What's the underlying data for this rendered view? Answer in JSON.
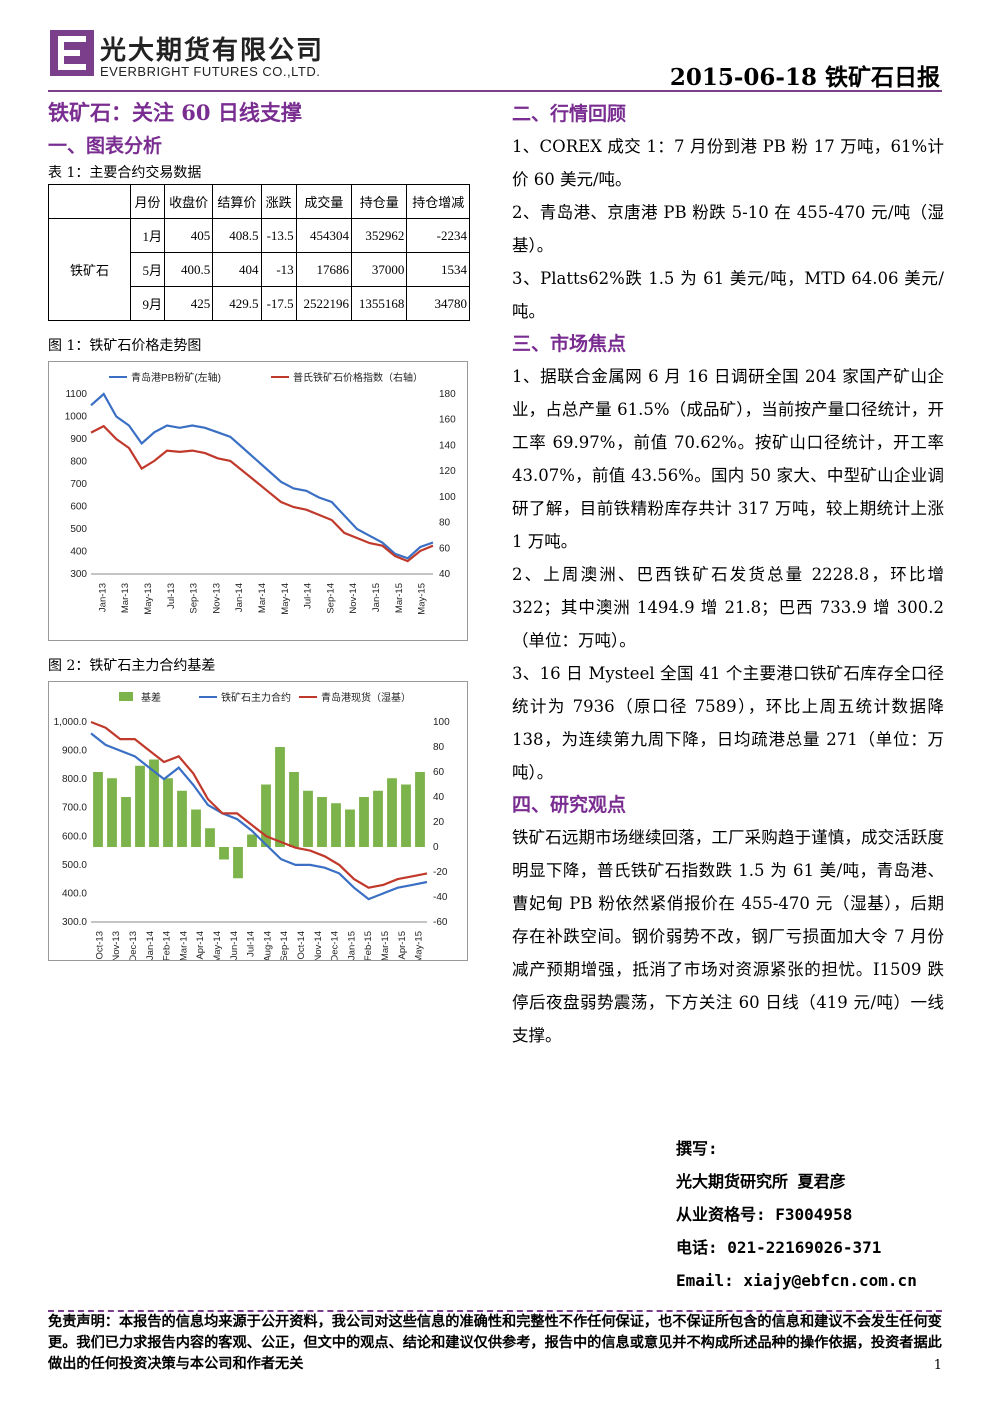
{
  "header": {
    "company_cn": "光大期货有限公司",
    "company_en": "EVERBRIGHT FUTURES CO.,LTD.",
    "report_title": "2015-06-18 铁矿石日报",
    "logo_letter": "E",
    "brand_color": "#7a3e8a"
  },
  "left": {
    "main_title": "铁矿石：关注 60 日线支撑",
    "section1": "一、图表分析",
    "table_caption": "表 1：主要合约交易数据",
    "table": {
      "headers": [
        "月份",
        "收盘价",
        "结算价",
        "涨跌",
        "成交量",
        "持仓量",
        "持仓增减"
      ],
      "variety": "铁矿石",
      "rows": [
        [
          "1月",
          "405",
          "408.5",
          "-13.5",
          "454304",
          "352962",
          "-2234"
        ],
        [
          "5月",
          "400.5",
          "404",
          "-13",
          "17686",
          "37000",
          "1534"
        ],
        [
          "9月",
          "425",
          "429.5",
          "-17.5",
          "2522196",
          "1355168",
          "34780"
        ]
      ]
    },
    "fig1_caption": "图 1：铁矿石价格走势图",
    "fig2_caption": "图 2：铁矿石主力合约基差"
  },
  "chart_data": [
    {
      "type": "line",
      "legend": [
        "青岛港PB粉矿(左轴)",
        "普氏铁矿石价格指数（右轴）"
      ],
      "x_ticks": [
        "Jan-13",
        "Mar-13",
        "May-13",
        "Jul-13",
        "Sep-13",
        "Nov-13",
        "Jan-14",
        "Mar-14",
        "May-14",
        "Jul-14",
        "Sep-14",
        "Nov-14",
        "Jan-15",
        "Mar-15",
        "May-15"
      ],
      "left_axis": {
        "ticks": [
          "300",
          "400",
          "500",
          "600",
          "700",
          "800",
          "900",
          "1000",
          "1100"
        ],
        "ylim": [
          300,
          1100
        ]
      },
      "right_axis": {
        "ticks": [
          "40",
          "60",
          "80",
          "100",
          "120",
          "140",
          "160",
          "180"
        ],
        "ylim": [
          40,
          180
        ]
      },
      "colors": [
        "#3a6fc4",
        "#c0392b"
      ],
      "series": [
        {
          "name": "青岛港PB粉矿(左轴)",
          "axis": "left",
          "values": [
            1050,
            1100,
            1000,
            960,
            880,
            930,
            960,
            950,
            960,
            950,
            930,
            910,
            860,
            810,
            760,
            710,
            680,
            670,
            640,
            620,
            560,
            500,
            470,
            440,
            390,
            370,
            420,
            440
          ]
        },
        {
          "name": "普氏铁矿石价格指数（右轴）",
          "axis": "right",
          "values": [
            150,
            155,
            145,
            138,
            122,
            128,
            136,
            135,
            136,
            134,
            130,
            128,
            120,
            112,
            104,
            96,
            92,
            90,
            86,
            82,
            72,
            68,
            64,
            62,
            54,
            50,
            58,
            62
          ]
        }
      ]
    },
    {
      "type": "bar",
      "legend": [
        "基差",
        "铁矿石主力合约",
        "青岛港现货（湿基）"
      ],
      "x_ticks": [
        "Oct-13",
        "Nov-13",
        "Dec-13",
        "Jan-14",
        "Feb-14",
        "Mar-14",
        "Apr-14",
        "May-14",
        "Jun-14",
        "Jul-14",
        "Aug-14",
        "Sep-14",
        "Oct-14",
        "Nov-14",
        "Dec-14",
        "Jan-15",
        "Feb-15",
        "Mar-15",
        "Apr-15",
        "May-15"
      ],
      "left_axis": {
        "ticks": [
          "300.0",
          "400.0",
          "500.0",
          "600.0",
          "700.0",
          "800.0",
          "900.0",
          "1,000.0"
        ],
        "ylim": [
          300,
          1000
        ]
      },
      "right_axis": {
        "ticks": [
          "-60",
          "-40",
          "-20",
          "0",
          "20",
          "40",
          "60",
          "80",
          "100"
        ],
        "ylim": [
          -60,
          100
        ]
      },
      "colors": [
        "#7cb34a",
        "#3a6fc4",
        "#c0392b"
      ],
      "basis_values": [
        60,
        55,
        40,
        65,
        70,
        55,
        45,
        30,
        15,
        -10,
        -25,
        10,
        50,
        80,
        60,
        45,
        40,
        35,
        30,
        40,
        45,
        55,
        50,
        60
      ],
      "main_contract_values": [
        960,
        920,
        900,
        880,
        840,
        800,
        840,
        780,
        710,
        680,
        660,
        620,
        570,
        520,
        500,
        500,
        490,
        470,
        420,
        380,
        400,
        420,
        430,
        440
      ],
      "spot_values": [
        1000,
        980,
        940,
        940,
        900,
        860,
        880,
        820,
        730,
        680,
        680,
        640,
        600,
        580,
        560,
        550,
        530,
        500,
        450,
        420,
        430,
        450,
        460,
        470
      ]
    }
  ],
  "right": {
    "section2": "二、行情回顾",
    "review": [
      "1、COREX 成交 1：7 月份到港 PB 粉 17 万吨，61%计价 60 美元/吨。",
      "2、青岛港、京唐港 PB 粉跌 5-10 在 455-470 元/吨（湿基）。",
      "3、Platts62%跌 1.5 为 61 美元/吨，MTD 64.06 美元/吨。"
    ],
    "section3": "三、市场焦点",
    "focus": [
      "1、据联合金属网 6 月 16 日调研全国 204 家国产矿山企业，占总产量 61.5%（成品矿），当前按产量口径统计，开工率 69.97%，前值 70.62%。按矿山口径统计，开工率 43.07%，前值 43.56%。国内 50 家大、中型矿山企业调研了解，目前铁精粉库存共计 317 万吨，较上期统计上涨 1 万吨。",
      "2、上周澳洲、巴西铁矿石发货总量 2228.8，环比增 322；其中澳洲 1494.9 增 21.8；巴西 733.9 增 300.2（单位：万吨）。",
      "3、16 日 Mysteel 全国 41 个主要港口铁矿石库存全口径统计为 7936（原口径 7589），环比上周五统计数据降 138，为连续第九周下降，日均疏港总量 271（单位：万吨）。"
    ],
    "section4": "四、研究观点",
    "opinion": "铁矿石远期市场继续回落，工厂采购趋于谨慎，成交活跃度明显下降，普氏铁矿石指数跌 1.5 为 61 美/吨，青岛港、曹妃甸 PB 粉依然紧俏报价在 455-470 元（湿基），后期存在补跌空间。钢价弱势不改，钢厂亏损面加大令 7 月份减产预期增强，抵消了市场对资源紧张的担忧。I1509 跌停后夜盘弱势震荡，下方关注 60 日线（419 元/吨）一线支撑。"
  },
  "author": {
    "label": "撰写:",
    "org": "光大期货研究所 夏君彦",
    "license": "从业资格号: F3004958",
    "phone": "电话: 021-22169026-371",
    "email": "Email: xiajy@ebfcn.com.cn"
  },
  "footer": {
    "disclaimer": "免责声明：本报告的信息均来源于公开资料，我公司对这些信息的准确性和完整性不作任何保证，也不保证所包含的信息和建议不会发生任何变更。我们已力求报告内容的客观、公正，但文中的观点、结论和建议仅供参考，报告中的信息或意见并不构成所述品种的操作依据，投资者据此做出的任何投资决策与本公司和作者无关",
    "page": "1"
  }
}
